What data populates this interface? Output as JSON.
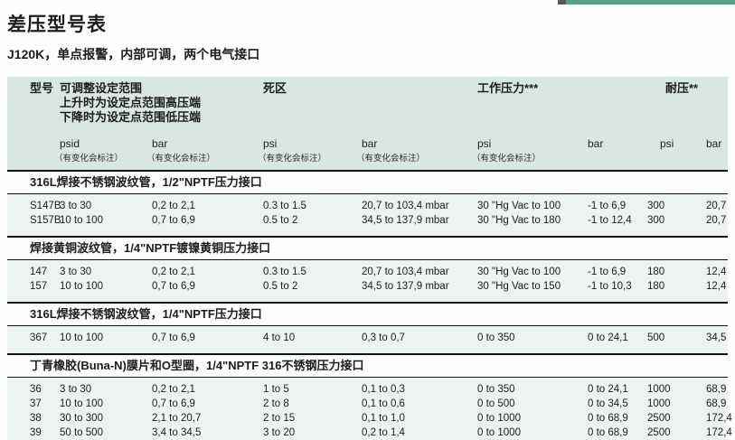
{
  "page": {
    "title": "差压型号表",
    "subtitle": "J120K，单点报警，内部可调，两个电气接口",
    "accent_color": "#55a181"
  },
  "table": {
    "header": {
      "model": "型号",
      "set_range_line1": "可调整设定范围",
      "set_range_line2": "上升时为设定点范围高压端",
      "set_range_line3": "下降时为设定点范围低压端",
      "deadband": "死区",
      "working_pressure": "工作压力***",
      "proof_pressure": "耐压**",
      "units": [
        "psid",
        "bar",
        "psi",
        "bar",
        "psi",
        "bar",
        "psi",
        "bar"
      ],
      "note": "（有变化会标注）"
    },
    "sections": [
      {
        "title": "316L焊接不锈钢波纹管，1/2\"NPTF压力接口",
        "rows": [
          {
            "cells": [
              "S147B",
              "3 to 30",
              "0,2 to 2,1",
              "0.3 to 1.5",
              "20,7 to 103,4 mbar",
              "30 \"Hg Vac to 100",
              "-1 to 6,9",
              "300",
              "20,7"
            ]
          },
          {
            "cells": [
              "S157B",
              "10 to 100",
              "0,7 to 6,9",
              "0.5 to 2",
              "34,5 to 137,9 mbar",
              "30 \"Hg Vac to 180",
              "-1 to 12,4",
              "300",
              "20,7"
            ]
          }
        ]
      },
      {
        "title": "焊接黄铜波纹管，1/4\"NPTF镀镍黄铜压力接口",
        "rows": [
          {
            "cells": [
              "147",
              "3 to 30",
              "0,2 to 2,1",
              "0.3 to 1.5",
              "20,7 to 103,4 mbar",
              "30 \"Hg Vac to 100",
              "-1 to 6,9",
              "180",
              "12,4"
            ]
          },
          {
            "cells": [
              "157",
              "10 to 100",
              "0,7 to 6,9",
              "0.5 to 2",
              "34,5 to 137,9 mbar",
              "30 \"Hg Vac to 150",
              "-1 to 10,3",
              "180",
              "12,4"
            ]
          }
        ]
      },
      {
        "title": "316L焊接不锈钢波纹管，1/4\"NPTF压力接口",
        "rows": [
          {
            "cells": [
              "367",
              "10 to 100",
              "0,7 to 6,9",
              "4 to 10",
              "0,3 to 0,7",
              "0 to 350",
              "0 to 24,1",
              "500",
              "34,5"
            ]
          }
        ]
      },
      {
        "title": "丁青橡胶(Buna-N)膜片和O型圈，1/4\"NPTF 316不锈钢压力接口",
        "rows": [
          {
            "cells": [
              "36",
              "3 to 30",
              "0,2 to 2,1",
              "1 to 5",
              "0,1 to 0,3",
              "0 to 350",
              "0 to 24,1",
              "1000",
              "68,9"
            ]
          },
          {
            "cells": [
              "37",
              "10 to 100",
              "0,7 to 6,9",
              "2 to 8",
              "0,1 to 0,6",
              "0 to 500",
              "0 to 34,5",
              "1000",
              "68,9"
            ]
          },
          {
            "cells": [
              "38",
              "30 to 300",
              "2,1 to 20,7",
              "2 to 15",
              "0,1 to 1,0",
              "0 to 1000",
              "0 to 68,9",
              "2500",
              "172,4"
            ]
          },
          {
            "cells": [
              "39",
              "50 to 500",
              "3,4 to 34,5",
              "3 to 20",
              "0,2 to 1,4",
              "0 to 1000",
              "0 to 68,9",
              "2500",
              "172,4"
            ]
          }
        ]
      }
    ]
  }
}
